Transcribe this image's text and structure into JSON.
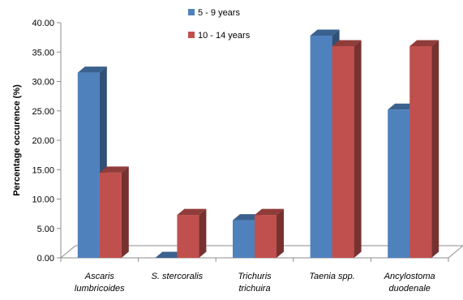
{
  "chart_data": {
    "type": "bar",
    "categories": [
      [
        "Ascaris",
        "lumbricoides"
      ],
      [
        "S. stercoralis"
      ],
      [
        "Trichuris",
        "trichuira"
      ],
      [
        "Taenia spp."
      ],
      [
        "Ancylostoma",
        "duodenale"
      ]
    ],
    "series": [
      {
        "name": "5 - 9 years",
        "values": [
          31.5,
          0.0,
          6.4,
          37.8,
          25.2
        ],
        "color": "#4f81bd"
      },
      {
        "name": "10 - 14 years",
        "values": [
          14.5,
          7.3,
          7.3,
          36.0,
          36.0
        ],
        "color": "#c0504d"
      }
    ],
    "title": "",
    "xlabel": "",
    "ylabel": "Percentage occurence (%)",
    "ylim": [
      0,
      40
    ],
    "yticks": [
      "0.00",
      "5.00",
      "10.00",
      "15.00",
      "20.00",
      "25.00",
      "30.00",
      "35.00",
      "40.00"
    ],
    "legend_position": "top-center",
    "grid": false,
    "style": "3d-clustered-column"
  }
}
